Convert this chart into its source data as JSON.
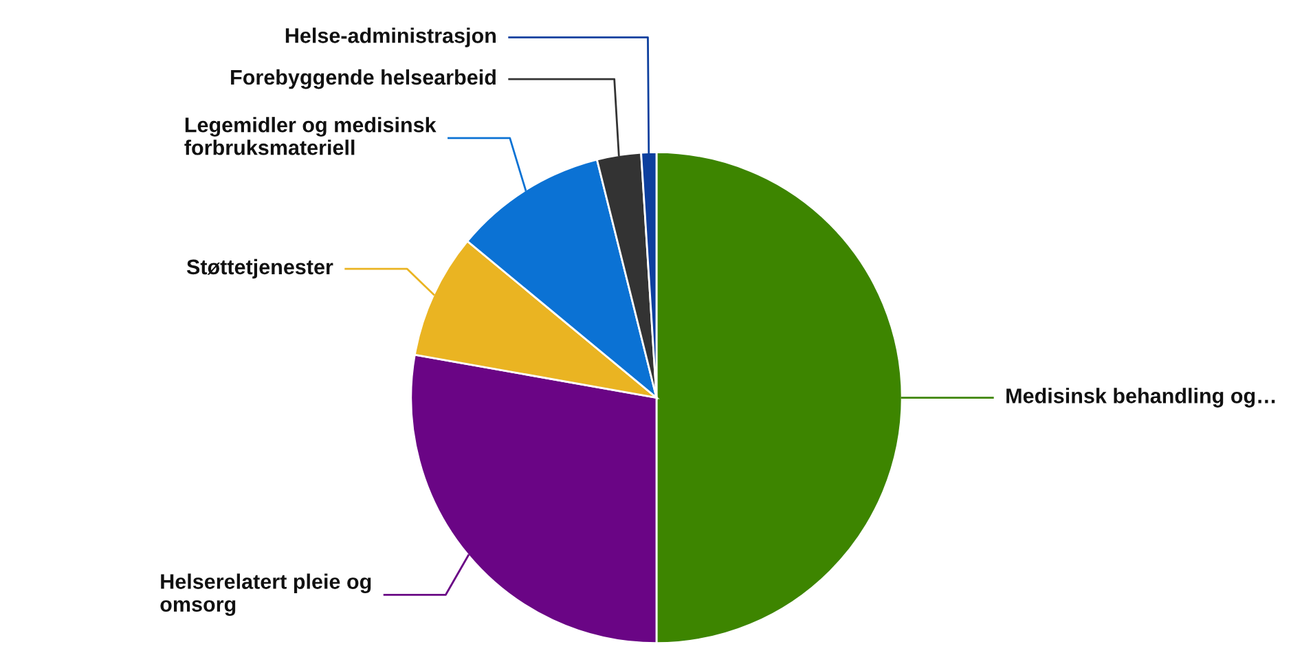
{
  "chart_data": {
    "type": "pie",
    "categories": [
      "Medisinsk behandling og…",
      "Helserelatert pleie og\nomsorg",
      "Støttetjenester",
      "Legemidler og medisinsk\nforbruksmateriell",
      "Forebyggende helsearbeid",
      "Helse-administrasjon"
    ],
    "values": [
      50,
      27.8,
      8.2,
      10.1,
      2.9,
      1.0
    ],
    "colors": [
      "#3d8500",
      "#6a0585",
      "#eab422",
      "#0b72d4",
      "#333333",
      "#0d3f9e"
    ],
    "legend": false
  }
}
